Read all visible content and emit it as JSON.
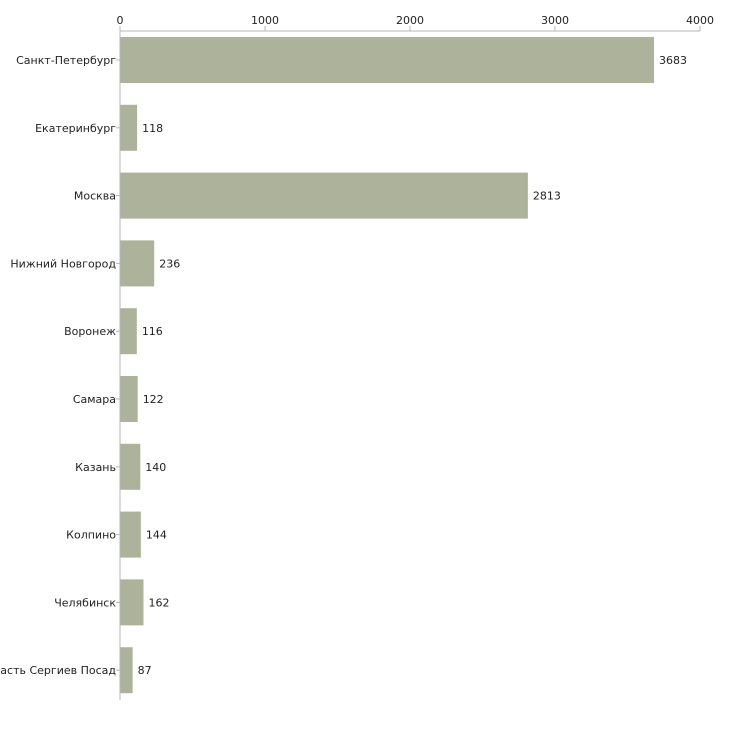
{
  "chart_data": {
    "type": "bar",
    "orientation": "horizontal",
    "title": "",
    "xlabel": "",
    "ylabel": "",
    "xlim": [
      0,
      4000
    ],
    "x_ticks": [
      0,
      1000,
      2000,
      3000,
      4000
    ],
    "x_tick_labels": [
      "0",
      "1000",
      "2000",
      "3000",
      "4000"
    ],
    "grid": false,
    "categories": [
      "Санкт-Петербург",
      "Екатеринбург",
      "Москва",
      "Нижний Новгород",
      "Воронеж",
      "Самара",
      "Казань",
      "Колпино",
      "Челябинск",
      "ласть Сергиев Посад"
    ],
    "values": [
      3683,
      118,
      2813,
      236,
      116,
      122,
      140,
      144,
      162,
      87
    ],
    "value_labels": [
      "3683",
      "118",
      "2813",
      "236",
      "116",
      "122",
      "140",
      "144",
      "162",
      "87"
    ],
    "bar_color": "#adb29a",
    "axis_color": "#b7b7b7"
  }
}
